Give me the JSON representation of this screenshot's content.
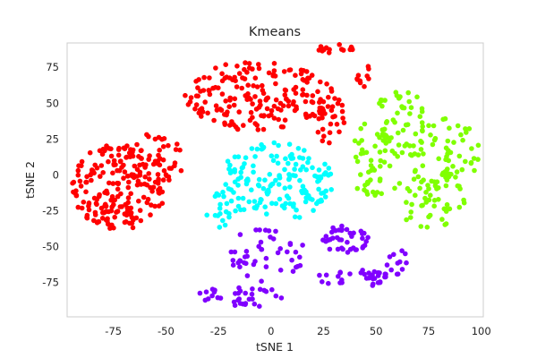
{
  "chart_data": {
    "type": "scatter",
    "title": "Kmeans",
    "xlabel": "tSNE 1",
    "ylabel": "tSNE 2",
    "xlim": [
      -97,
      101
    ],
    "ylim": [
      -99,
      92
    ],
    "xticks": [
      -75,
      -50,
      -25,
      0,
      25,
      50,
      75,
      100
    ],
    "yticks": [
      -75,
      -50,
      -25,
      0,
      25,
      50,
      75
    ],
    "grid": false,
    "legend": "none",
    "clusters": [
      {
        "color": "#ff0000",
        "groups": [
          {
            "cx": -72,
            "cy": -8,
            "rx": 23,
            "ry": 30,
            "n": 200
          },
          {
            "cx": -5,
            "cy": 55,
            "rx": 36,
            "ry": 25,
            "n": 190
          },
          {
            "cx": -55,
            "cy": 10,
            "rx": 15,
            "ry": 20,
            "n": 40
          },
          {
            "cx": 28,
            "cy": 40,
            "rx": 7,
            "ry": 20,
            "n": 25
          },
          {
            "cx": 30,
            "cy": 88,
            "rx": 10,
            "ry": 3,
            "n": 15
          },
          {
            "cx": 45,
            "cy": 68,
            "rx": 5,
            "ry": 8,
            "n": 10
          }
        ]
      },
      {
        "color": "#00ffff",
        "groups": [
          {
            "cx": 2,
            "cy": -5,
            "rx": 28,
            "ry": 28,
            "n": 160
          },
          {
            "cx": -25,
            "cy": -25,
            "rx": 6,
            "ry": 12,
            "n": 15
          }
        ]
      },
      {
        "color": "#80ff00",
        "groups": [
          {
            "cx": 48,
            "cy": 10,
            "rx": 10,
            "ry": 28,
            "n": 45
          },
          {
            "cx": 63,
            "cy": 35,
            "rx": 16,
            "ry": 25,
            "n": 60
          },
          {
            "cx": 75,
            "cy": -15,
            "rx": 18,
            "ry": 22,
            "n": 60
          },
          {
            "cx": 85,
            "cy": 15,
            "rx": 15,
            "ry": 25,
            "n": 45
          }
        ]
      },
      {
        "color": "#8000ff",
        "groups": [
          {
            "cx": -2,
            "cy": -55,
            "rx": 18,
            "ry": 20,
            "n": 45
          },
          {
            "cx": 35,
            "cy": -45,
            "rx": 12,
            "ry": 10,
            "n": 40
          },
          {
            "cx": 40,
            "cy": -72,
            "rx": 18,
            "ry": 6,
            "n": 35
          },
          {
            "cx": -15,
            "cy": -85,
            "rx": 22,
            "ry": 8,
            "n": 35
          },
          {
            "cx": 60,
            "cy": -60,
            "rx": 5,
            "ry": 10,
            "n": 12
          }
        ]
      }
    ]
  }
}
